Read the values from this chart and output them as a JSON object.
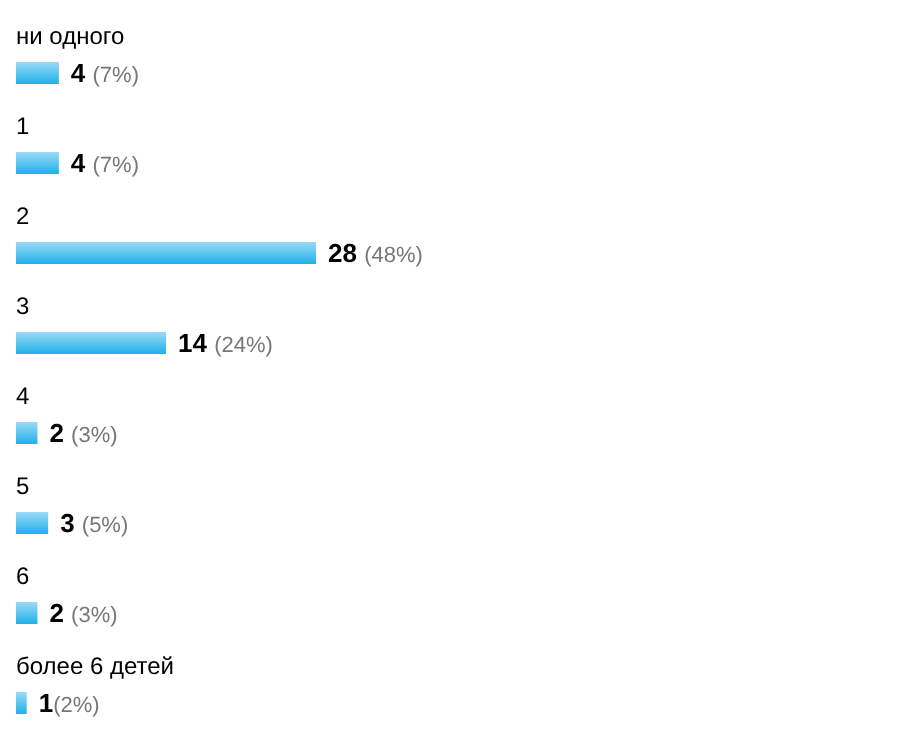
{
  "chart_data": {
    "type": "bar",
    "orientation": "horizontal",
    "categories": [
      "ни одного",
      "1",
      "2",
      "3",
      "4",
      "5",
      "6",
      "более 6 детей"
    ],
    "values": [
      4,
      4,
      28,
      14,
      2,
      3,
      2,
      1
    ],
    "value_labels": [
      "4 (7%)",
      "4 (7%)",
      "28 (48%)",
      "14 (24%)",
      "2 (3%)",
      "3 (5%)",
      "2 (3%)",
      "1(2%)"
    ],
    "color": "#1fb0ea"
  }
}
